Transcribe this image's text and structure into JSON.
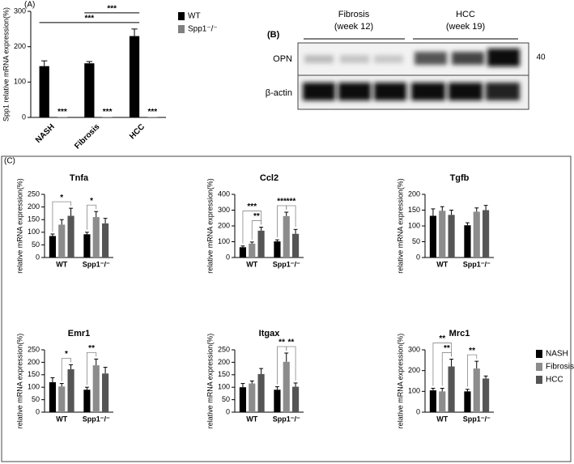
{
  "panel_labels": [
    "(A)",
    "(B)",
    "(C)"
  ],
  "blot": {
    "groups": [
      {
        "name": "Fibrosis",
        "sub": "(week 12)"
      },
      {
        "name": "HCC",
        "sub": "(week 19)"
      }
    ],
    "rows": [
      "OPN",
      "β-actin"
    ],
    "marker": "40"
  },
  "chart_data": [
    {
      "type": "bar",
      "ylabel": "Spp1 relative mRNA expression(%)",
      "categories": [
        "NASH",
        "Fibrosis",
        "HCC"
      ],
      "series": [
        {
          "name": "WT",
          "color": "#000000",
          "values": [
            145,
            153,
            230
          ],
          "errors": [
            15,
            5,
            20
          ]
        },
        {
          "name": "Spp1⁻/⁻",
          "color": "#808080",
          "values": [
            1,
            1,
            1
          ]
        }
      ],
      "ylim": [
        0,
        300
      ],
      "yticks": [
        0,
        100,
        200,
        300
      ],
      "legend": "right",
      "annotations": [
        {
          "label": "***",
          "from": [
            0,
            0
          ],
          "to": [
            2,
            0
          ]
        },
        {
          "label": "***",
          "from": [
            1,
            0
          ],
          "to": [
            2,
            0
          ]
        },
        {
          "label": "***",
          "at": [
            0,
            1
          ]
        },
        {
          "label": "***",
          "at": [
            1,
            1
          ]
        },
        {
          "label": "***",
          "at": [
            2,
            1
          ]
        }
      ]
    },
    {
      "type": "bar",
      "title": "Tnfa",
      "ylabel": "relative mRNA expression(%)",
      "categories": [
        "WT",
        "Spp1⁻/⁻"
      ],
      "series": [
        {
          "color": "#000000",
          "values": [
            85,
            92
          ],
          "errors": [
            8,
            8
          ]
        },
        {
          "color": "#8c8c8c",
          "values": [
            130,
            160
          ],
          "errors": [
            20,
            22
          ]
        },
        {
          "color": "#555555",
          "values": [
            165,
            135
          ],
          "errors": [
            30,
            20
          ]
        }
      ],
      "ylim": [
        0,
        250
      ],
      "yticks": [
        0,
        50,
        100,
        150,
        200,
        250
      ],
      "annotations": [
        {
          "label": "*",
          "from": [
            0,
            0
          ],
          "to": [
            0,
            2
          ]
        },
        {
          "label": "*",
          "from": [
            1,
            0
          ],
          "to": [
            1,
            1
          ]
        }
      ]
    },
    {
      "type": "bar",
      "title": "Ccl2",
      "ylabel": "relative mRNA expression(%)",
      "categories": [
        "WT",
        "Spp1⁻/⁻"
      ],
      "series": [
        {
          "color": "#000000",
          "values": [
            65,
            102
          ],
          "errors": [
            8,
            10
          ]
        },
        {
          "color": "#8c8c8c",
          "values": [
            88,
            262
          ],
          "errors": [
            10,
            25
          ]
        },
        {
          "color": "#555555",
          "values": [
            170,
            150
          ],
          "errors": [
            22,
            28
          ]
        }
      ],
      "ylim": [
        0,
        400
      ],
      "yticks": [
        0,
        100,
        200,
        300,
        400
      ],
      "annotations": [
        {
          "label": "**",
          "from": [
            0,
            1
          ],
          "to": [
            0,
            2
          ]
        },
        {
          "label": "***",
          "from": [
            0,
            0
          ],
          "to": [
            0,
            2
          ]
        },
        {
          "label": "***",
          "from": [
            1,
            0
          ],
          "to": [
            1,
            1
          ]
        },
        {
          "label": "***",
          "from": [
            1,
            1
          ],
          "to": [
            1,
            2
          ]
        }
      ]
    },
    {
      "type": "bar",
      "title": "Tgfb",
      "ylabel": "relative mRNA expression(%)",
      "categories": [
        "WT",
        "Spp1⁻/⁻"
      ],
      "series": [
        {
          "color": "#000000",
          "values": [
            132,
            102
          ],
          "errors": [
            22,
            8
          ]
        },
        {
          "color": "#8c8c8c",
          "values": [
            148,
            145
          ],
          "errors": [
            13,
            12
          ]
        },
        {
          "color": "#555555",
          "values": [
            135,
            150
          ],
          "errors": [
            15,
            15
          ]
        }
      ],
      "ylim": [
        0,
        200
      ],
      "yticks": [
        0,
        50,
        100,
        150,
        200
      ],
      "annotations": []
    },
    {
      "type": "bar",
      "title": "Emr1",
      "ylabel": "relative mRNA expression(%)",
      "categories": [
        "WT",
        "Spp1⁻/⁻"
      ],
      "series": [
        {
          "color": "#000000",
          "values": [
            120,
            90
          ],
          "errors": [
            18,
            10
          ]
        },
        {
          "color": "#8c8c8c",
          "values": [
            103,
            188
          ],
          "errors": [
            12,
            25
          ]
        },
        {
          "color": "#555555",
          "values": [
            172,
            155
          ],
          "errors": [
            18,
            25
          ]
        }
      ],
      "ylim": [
        0,
        250
      ],
      "yticks": [
        0,
        50,
        100,
        150,
        200,
        250
      ],
      "annotations": [
        {
          "label": "*",
          "from": [
            0,
            1
          ],
          "to": [
            0,
            2
          ]
        },
        {
          "label": "**",
          "from": [
            1,
            0
          ],
          "to": [
            1,
            1
          ]
        }
      ]
    },
    {
      "type": "bar",
      "title": "Itgax",
      "ylabel": "relative mRNA expression(%)",
      "categories": [
        "WT",
        "Spp1⁻/⁻"
      ],
      "series": [
        {
          "color": "#000000",
          "values": [
            100,
            90
          ],
          "errors": [
            15,
            12
          ]
        },
        {
          "color": "#8c8c8c",
          "values": [
            115,
            202
          ],
          "errors": [
            10,
            35
          ]
        },
        {
          "color": "#555555",
          "values": [
            153,
            102
          ],
          "errors": [
            22,
            15
          ]
        }
      ],
      "ylim": [
        0,
        250
      ],
      "yticks": [
        0,
        50,
        100,
        150,
        200,
        250
      ],
      "annotations": [
        {
          "label": "**",
          "from": [
            1,
            0
          ],
          "to": [
            1,
            1
          ]
        },
        {
          "label": "**",
          "from": [
            1,
            1
          ],
          "to": [
            1,
            2
          ]
        }
      ]
    },
    {
      "type": "bar",
      "title": "Mrc1",
      "ylabel": "relative mRNA expression(%)",
      "categories": [
        "WT",
        "Spp1⁻/⁻"
      ],
      "series": [
        {
          "name": "NASH",
          "color": "#000000",
          "values": [
            105,
            100
          ],
          "errors": [
            10,
            10
          ]
        },
        {
          "name": "Fibrosis",
          "color": "#8c8c8c",
          "values": [
            100,
            210
          ],
          "errors": [
            15,
            35
          ]
        },
        {
          "name": "HCC",
          "color": "#555555",
          "values": [
            220,
            162
          ],
          "errors": [
            35,
            12
          ]
        }
      ],
      "ylim": [
        0,
        300
      ],
      "yticks": [
        0,
        100,
        200,
        300
      ],
      "legend": "right",
      "annotations": [
        {
          "label": "**",
          "from": [
            0,
            1
          ],
          "to": [
            0,
            2
          ]
        },
        {
          "label": "**",
          "from": [
            0,
            0
          ],
          "to": [
            0,
            2
          ]
        },
        {
          "label": "**",
          "from": [
            1,
            0
          ],
          "to": [
            1,
            1
          ]
        }
      ]
    }
  ]
}
